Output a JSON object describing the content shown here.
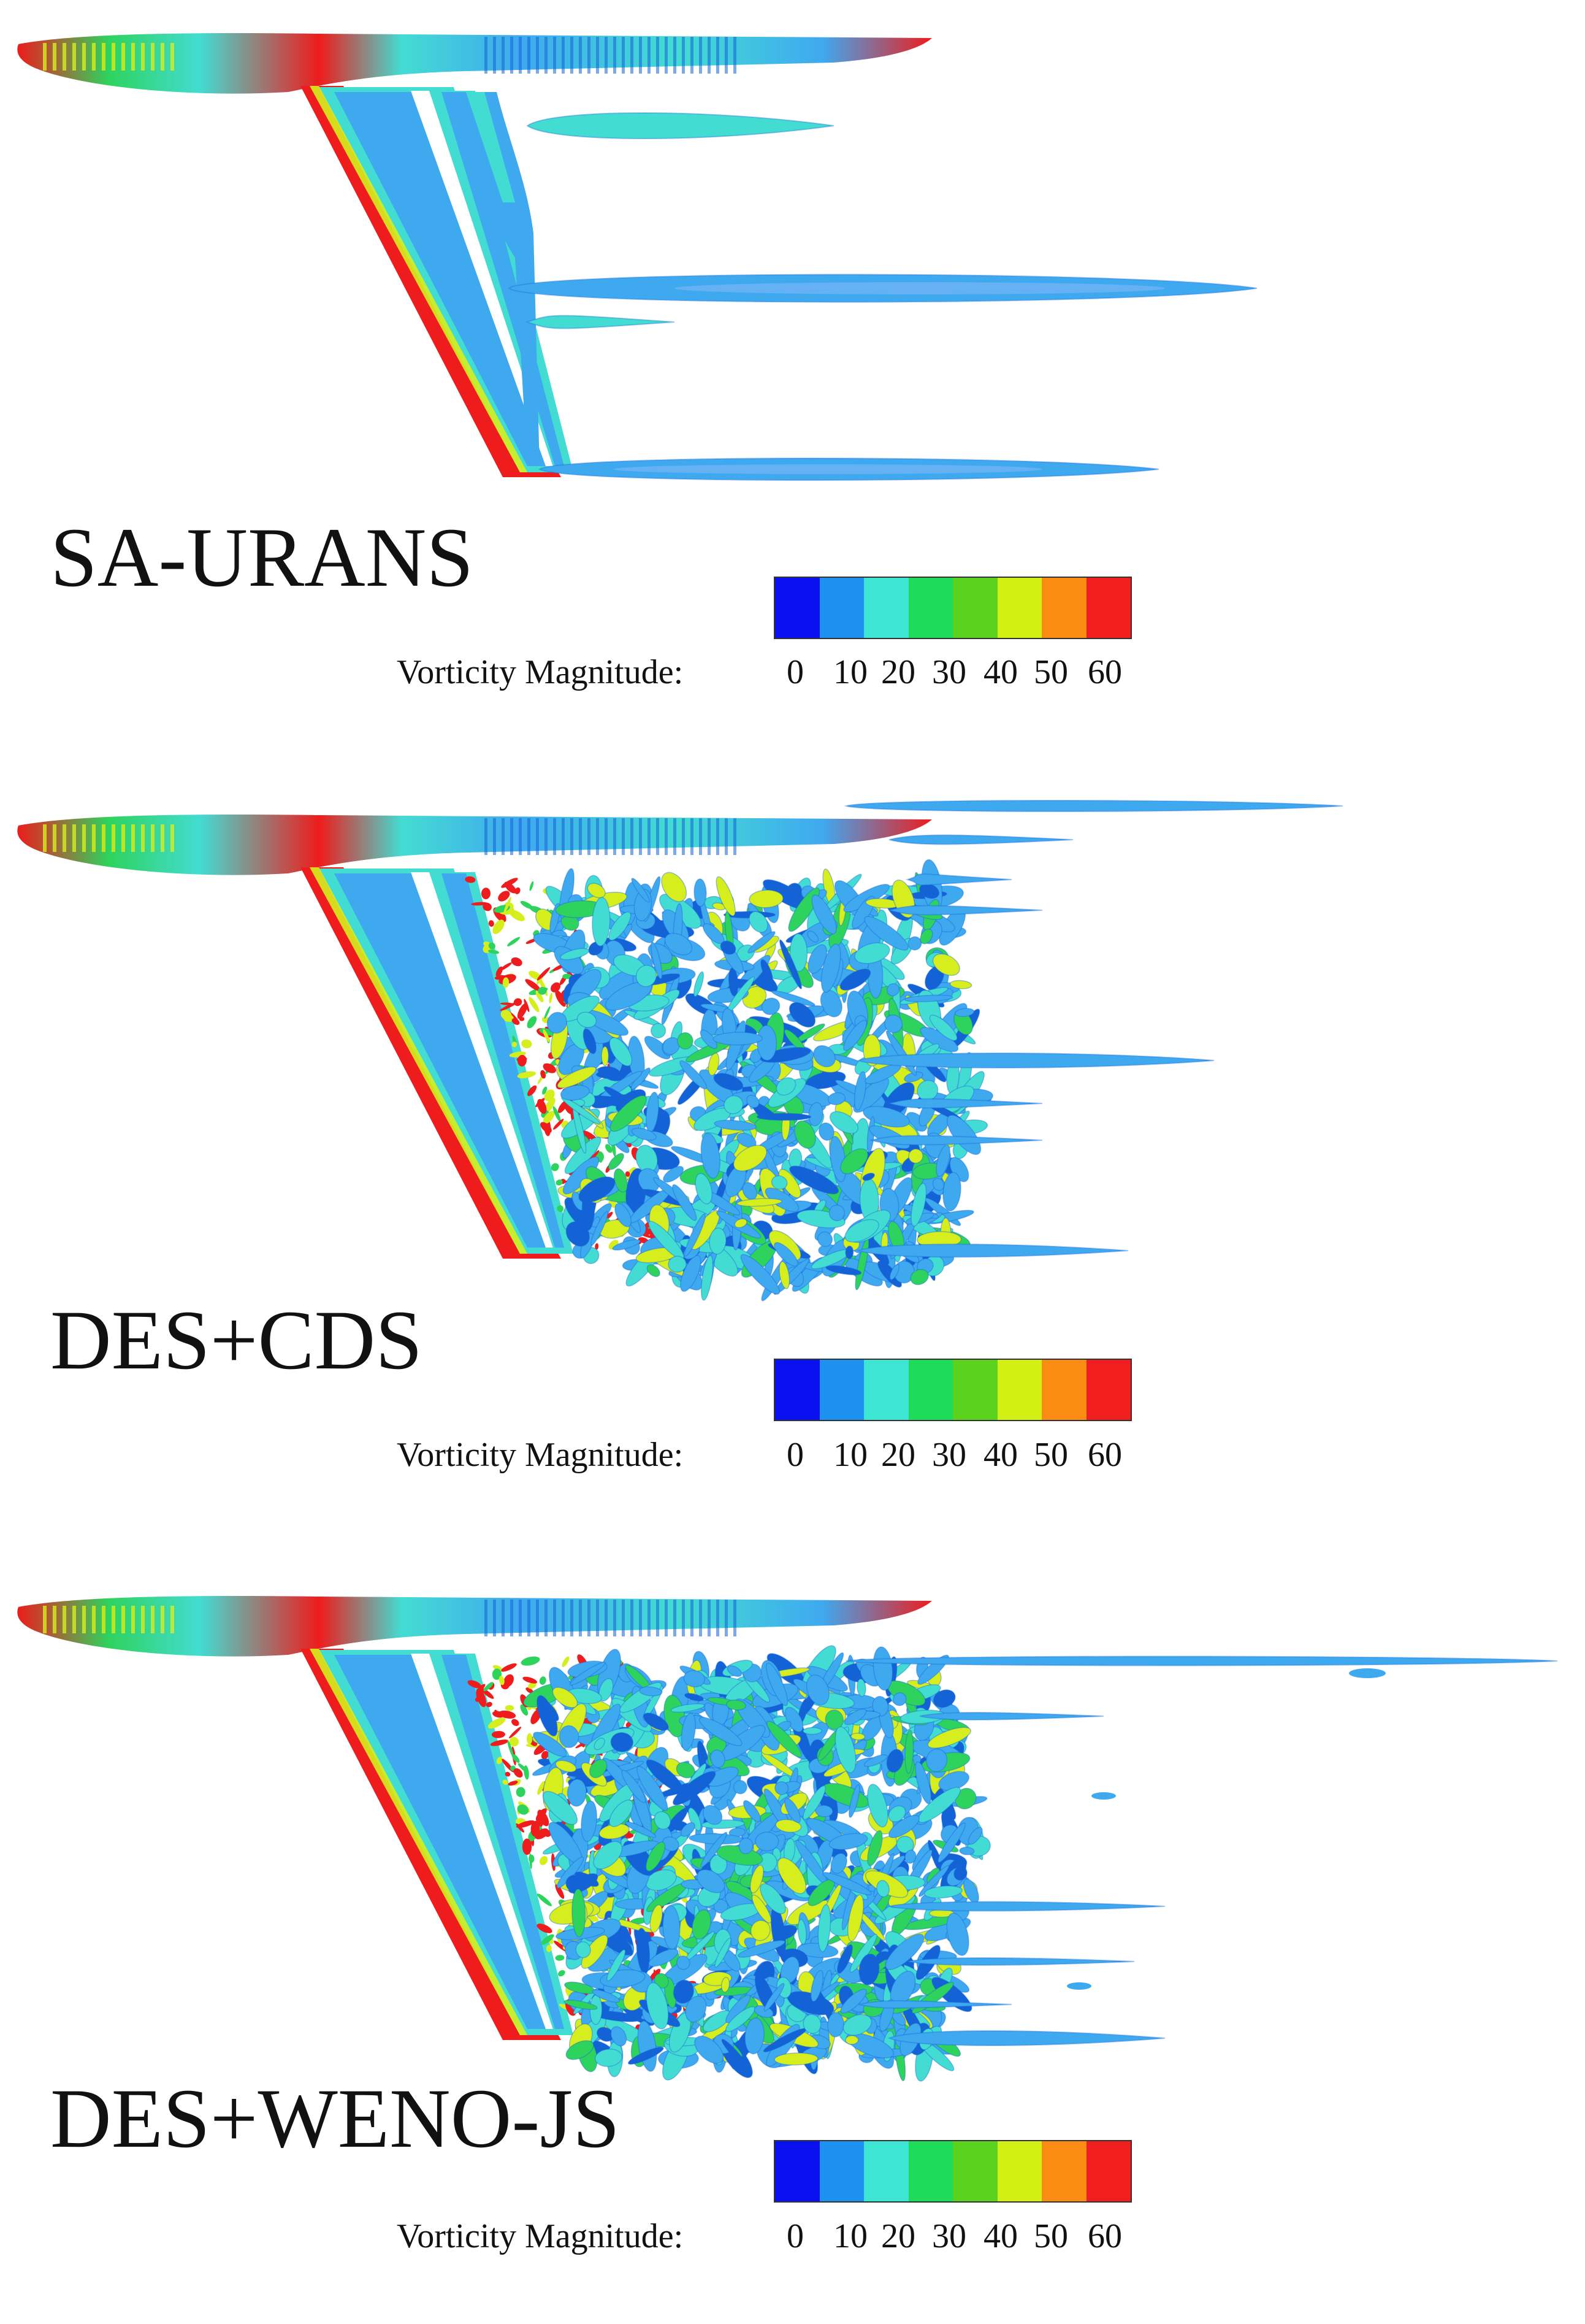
{
  "figure": {
    "panels": [
      {
        "label": "SA-URANS",
        "regime": "steady"
      },
      {
        "label": "DES+CDS",
        "regime": "turbulent"
      },
      {
        "label": "DES+WENO-JS",
        "regime": "turbulent-dense"
      }
    ],
    "legend": {
      "title": "Vorticity Magnitude:",
      "ticks": [
        "0",
        "10",
        "20",
        "30",
        "40",
        "50",
        "60"
      ],
      "colors": [
        "#0a10f0",
        "#1e90f0",
        "#3ce6d2",
        "#1edc5a",
        "#5ad21e",
        "#d2f014",
        "#fa8c14",
        "#f01e1e"
      ]
    },
    "surface_colors": {
      "red": "#ee1c1c",
      "cyan": "#43dcd2",
      "light_blue": "#3fa9f0",
      "green": "#2ed35e",
      "yellow": "#d6ee1e",
      "dark_blue": "#1463d6"
    }
  }
}
